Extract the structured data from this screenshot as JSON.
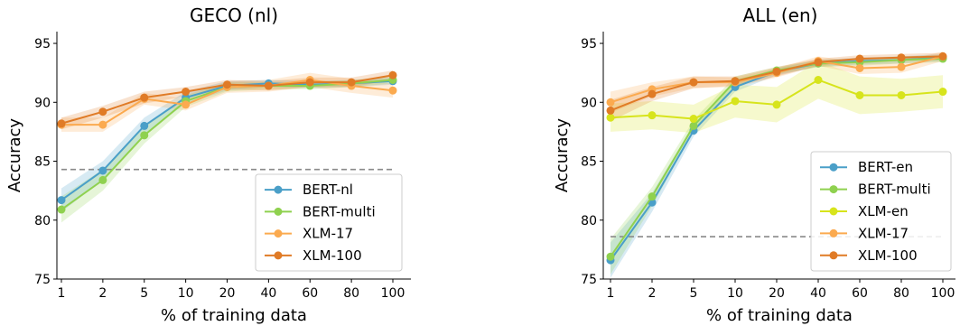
{
  "chart_data": [
    {
      "type": "line",
      "title": "GECO (nl)",
      "xlabel": "% of training data",
      "ylabel": "Accuracy",
      "categories": [
        "1",
        "2",
        "5",
        "10",
        "20",
        "40",
        "60",
        "80",
        "100"
      ],
      "ylim": [
        75,
        96
      ],
      "yticks": [
        75,
        80,
        85,
        90,
        95
      ],
      "baseline": 84.3,
      "grid": false,
      "legend_position": "lower-right",
      "series": [
        {
          "name": "BERT-nl",
          "color": "#4a9fc8",
          "values": [
            81.7,
            84.2,
            88.0,
            90.4,
            91.4,
            91.6,
            91.5,
            91.6,
            91.8
          ],
          "band": [
            1.0,
            0.8,
            0.7,
            0.5,
            0.4,
            0.3,
            0.3,
            0.3,
            0.3
          ]
        },
        {
          "name": "BERT-multi",
          "color": "#8fd14f",
          "values": [
            80.9,
            83.4,
            87.2,
            90.1,
            91.3,
            91.4,
            91.4,
            91.6,
            91.9
          ],
          "band": [
            1.1,
            0.9,
            0.7,
            0.5,
            0.4,
            0.3,
            0.3,
            0.3,
            0.3
          ]
        },
        {
          "name": "XLM-17",
          "color": "#fbaa4f",
          "values": [
            88.1,
            88.1,
            90.3,
            89.8,
            91.3,
            91.4,
            91.9,
            91.4,
            91.0
          ],
          "band": [
            0.6,
            0.6,
            0.5,
            0.5,
            0.5,
            0.5,
            0.6,
            0.6,
            0.6
          ]
        },
        {
          "name": "XLM-100",
          "color": "#e07b26",
          "values": [
            88.2,
            89.2,
            90.4,
            90.9,
            91.5,
            91.4,
            91.7,
            91.7,
            92.3
          ],
          "band": [
            0.5,
            0.5,
            0.5,
            0.4,
            0.4,
            0.4,
            0.4,
            0.4,
            0.4
          ]
        }
      ]
    },
    {
      "type": "line",
      "title": "ALL (en)",
      "xlabel": "% of training data",
      "ylabel": "Accuracy",
      "categories": [
        "1",
        "2",
        "5",
        "10",
        "20",
        "40",
        "60",
        "80",
        "100"
      ],
      "ylim": [
        75,
        96
      ],
      "yticks": [
        75,
        80,
        85,
        90,
        95
      ],
      "baseline": 78.6,
      "grid": false,
      "legend_position": "lower-right",
      "series": [
        {
          "name": "BERT-en",
          "color": "#4a9fc8",
          "values": [
            76.6,
            81.5,
            87.6,
            91.3,
            92.6,
            93.3,
            93.5,
            93.6,
            93.8
          ],
          "band": [
            1.5,
            0.8,
            0.5,
            0.4,
            0.3,
            0.3,
            0.3,
            0.3,
            0.3
          ]
        },
        {
          "name": "BERT-multi",
          "color": "#8fd14f",
          "values": [
            76.9,
            82.0,
            88.0,
            91.8,
            92.7,
            93.3,
            93.4,
            93.6,
            93.7
          ],
          "band": [
            1.5,
            0.8,
            0.5,
            0.4,
            0.3,
            0.3,
            0.3,
            0.3,
            0.3
          ]
        },
        {
          "name": "XLM-en",
          "color": "#d7e41c",
          "values": [
            88.7,
            88.9,
            88.6,
            90.1,
            89.8,
            91.9,
            90.6,
            90.6,
            90.9
          ],
          "band": [
            1.2,
            1.2,
            1.2,
            1.4,
            1.5,
            1.6,
            1.6,
            1.4,
            1.4
          ]
        },
        {
          "name": "XLM-17",
          "color": "#fbaa4f",
          "values": [
            90.0,
            91.1,
            91.7,
            91.7,
            92.5,
            93.5,
            92.9,
            93.0,
            93.9
          ],
          "band": [
            0.9,
            0.6,
            0.5,
            0.4,
            0.4,
            0.4,
            0.5,
            0.5,
            0.4
          ]
        },
        {
          "name": "XLM-100",
          "color": "#e07b26",
          "values": [
            89.3,
            90.7,
            91.7,
            91.8,
            92.6,
            93.4,
            93.7,
            93.8,
            93.9
          ],
          "band": [
            0.9,
            0.6,
            0.5,
            0.4,
            0.4,
            0.3,
            0.3,
            0.3,
            0.3
          ]
        }
      ]
    }
  ]
}
